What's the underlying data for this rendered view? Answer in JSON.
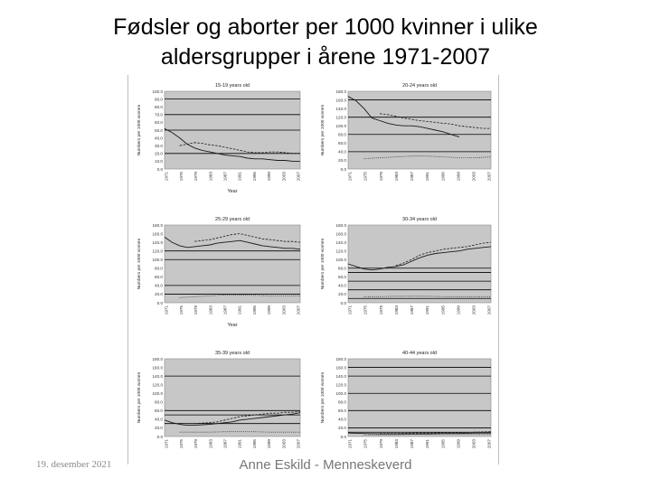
{
  "slide": {
    "title_line1": "Fødsler og aborter per 1000 kvinner i ulike",
    "title_line2": "aldersgrupper i årene 1971-2007",
    "footer_date": "19. desember 2021",
    "footer_author": "Anne Eskild - Menneskeverd"
  },
  "colors": {
    "plot_bg": "#c7c7c7",
    "series_line": "#1a1a1a",
    "grid_line": "#000000"
  },
  "chart_data": [
    {
      "type": "line",
      "title": "15-19 years old",
      "xlabel": "Year",
      "ylabel": "Numbers per 1000 women",
      "ylim": [
        0,
        100
      ],
      "yticks": [
        "100.0",
        "90.0",
        "80.0",
        "70.0",
        "60.0",
        "50.0",
        "40.0",
        "30.0",
        "20.0",
        "10.0",
        "0.0"
      ],
      "xticks": [
        "1971",
        "1975",
        "1979",
        "1983",
        "1987",
        "1991",
        "1995",
        "1999",
        "2003",
        "2007"
      ],
      "grid_y": [
        20,
        50,
        70,
        90
      ],
      "series": [
        {
          "style": "solid",
          "x": [
            1971,
            1973,
            1975,
            1977,
            1979,
            1981,
            1983,
            1985,
            1987,
            1989,
            1991,
            1993,
            1995,
            1997,
            1999,
            2001,
            2003,
            2005,
            2007
          ],
          "y": [
            52,
            47,
            40,
            32,
            27,
            24,
            22,
            20,
            18,
            17,
            16,
            14,
            13,
            13,
            12,
            11,
            11,
            10,
            10
          ]
        },
        {
          "style": "dashed",
          "x": [
            1975,
            1977,
            1979,
            1981,
            1983,
            1985,
            1987,
            1989,
            1991,
            1993,
            1995,
            1997,
            1999,
            2001,
            2003,
            2005,
            2007
          ],
          "y": [
            30,
            32,
            34,
            33,
            31,
            30,
            28,
            26,
            24,
            22,
            21,
            21,
            22,
            22,
            21,
            20,
            20
          ]
        }
      ]
    },
    {
      "type": "line",
      "title": "20-24 years old",
      "xlabel": "",
      "ylabel": "Numbers per 1000 women",
      "ylim": [
        0,
        180
      ],
      "yticks": [
        "180.0",
        "160.0",
        "140.0",
        "120.0",
        "100.0",
        "80.0",
        "60.0",
        "40.0",
        "20.0",
        "0.0"
      ],
      "xticks": [
        "1971",
        "1975",
        "1979",
        "1983",
        "1987",
        "1991",
        "1995",
        "1999",
        "2003",
        "2007"
      ],
      "grid_y": [
        40,
        80,
        120,
        160
      ],
      "series": [
        {
          "style": "solid",
          "x": [
            1971,
            1973,
            1975,
            1977,
            1979,
            1981,
            1983,
            1985,
            1987,
            1989,
            1991,
            1993,
            1995,
            1997,
            1999
          ],
          "y": [
            168,
            158,
            140,
            118,
            112,
            106,
            102,
            100,
            100,
            98,
            94,
            90,
            86,
            80,
            74
          ]
        },
        {
          "style": "dashed",
          "x": [
            1979,
            1981,
            1983,
            1985,
            1987,
            1989,
            1991,
            1993,
            1995,
            1997,
            1999,
            2001,
            2003,
            2005,
            2007
          ],
          "y": [
            128,
            126,
            122,
            118,
            115,
            112,
            110,
            108,
            106,
            104,
            100,
            98,
            96,
            94,
            94
          ]
        },
        {
          "style": "dotted",
          "x": [
            1975,
            1979,
            1983,
            1987,
            1991,
            1995,
            1999,
            2003,
            2007
          ],
          "y": [
            24,
            26,
            28,
            30,
            30,
            28,
            26,
            26,
            28
          ]
        }
      ]
    },
    {
      "type": "line",
      "title": "25-29 years old",
      "xlabel": "Year",
      "ylabel": "Numbers per 1000 women",
      "ylim": [
        0,
        180
      ],
      "yticks": [
        "180.0",
        "160.0",
        "140.0",
        "120.0",
        "100.0",
        "80.0",
        "60.0",
        "40.0",
        "20.0",
        "0.0"
      ],
      "xticks": [
        "1971",
        "1975",
        "1979",
        "1983",
        "1987",
        "1991",
        "1995",
        "1999",
        "2003",
        "2007"
      ],
      "grid_y": [
        20,
        40,
        100,
        120
      ],
      "series": [
        {
          "style": "solid",
          "x": [
            1971,
            1973,
            1975,
            1977,
            1979,
            1981,
            1983,
            1985,
            1987,
            1989,
            1991,
            1993,
            1995,
            1997,
            1999,
            2001,
            2003,
            2005,
            2007
          ],
          "y": [
            152,
            140,
            132,
            128,
            130,
            132,
            134,
            138,
            140,
            142,
            144,
            140,
            136,
            132,
            130,
            128,
            126,
            126,
            124
          ]
        },
        {
          "style": "dashed",
          "x": [
            1979,
            1981,
            1983,
            1985,
            1987,
            1989,
            1991,
            1993,
            1995,
            1997,
            1999,
            2001,
            2003,
            2005,
            2007
          ],
          "y": [
            142,
            144,
            146,
            150,
            154,
            158,
            160,
            156,
            152,
            148,
            146,
            144,
            142,
            142,
            140
          ]
        },
        {
          "style": "dotted",
          "x": [
            1975,
            1979,
            1983,
            1987,
            1991,
            1995,
            1999,
            2003,
            2007
          ],
          "y": [
            12,
            14,
            16,
            18,
            18,
            17,
            16,
            16,
            16
          ]
        }
      ]
    },
    {
      "type": "line",
      "title": "30-34 years old",
      "xlabel": "",
      "ylabel": "Numbers per 1000 women",
      "ylim": [
        0,
        180
      ],
      "yticks": [
        "180.0",
        "160.0",
        "140.0",
        "120.0",
        "100.0",
        "80.0",
        "60.0",
        "40.0",
        "20.0",
        "0.0"
      ],
      "xticks": [
        "1971",
        "1975",
        "1979",
        "1983",
        "1987",
        "1991",
        "1995",
        "1999",
        "2003",
        "2007"
      ],
      "grid_y": [
        10,
        30,
        50,
        70,
        80
      ],
      "series": [
        {
          "style": "solid",
          "x": [
            1971,
            1973,
            1975,
            1977,
            1979,
            1981,
            1983,
            1985,
            1987,
            1989,
            1991,
            1993,
            1995,
            1997,
            1999,
            2001,
            2003,
            2005,
            2007
          ],
          "y": [
            90,
            84,
            78,
            76,
            78,
            82,
            84,
            88,
            96,
            104,
            110,
            114,
            116,
            118,
            120,
            124,
            126,
            128,
            130
          ]
        },
        {
          "style": "dashed",
          "x": [
            1983,
            1985,
            1987,
            1989,
            1991,
            1993,
            1995,
            1997,
            1999,
            2001,
            2003,
            2005,
            2007
          ],
          "y": [
            86,
            92,
            100,
            110,
            116,
            120,
            124,
            126,
            128,
            130,
            134,
            138,
            140
          ]
        },
        {
          "style": "dotted",
          "x": [
            1975,
            1979,
            1983,
            1987,
            1991,
            1995,
            1999,
            2003,
            2007
          ],
          "y": [
            14,
            14,
            15,
            15,
            15,
            14,
            14,
            14,
            14
          ]
        }
      ]
    },
    {
      "type": "line",
      "title": "35-39 years old",
      "xlabel": "",
      "ylabel": "Numbers per 1000 women",
      "ylim": [
        0,
        180
      ],
      "yticks": [
        "180.0",
        "160.0",
        "140.0",
        "120.0",
        "100.0",
        "80.0",
        "60.0",
        "40.0",
        "20.0",
        "0.0"
      ],
      "xticks": [
        "1971",
        "1975",
        "1979",
        "1983",
        "1987",
        "1991",
        "1995",
        "1999",
        "2003",
        "2007"
      ],
      "grid_y": [
        30,
        50,
        60,
        140
      ],
      "series": [
        {
          "style": "solid",
          "x": [
            1971,
            1973,
            1975,
            1977,
            1979,
            1981,
            1983,
            1985,
            1987,
            1989,
            1991,
            1993,
            1995,
            1997,
            1999,
            2001,
            2003,
            2005,
            2007
          ],
          "y": [
            38,
            32,
            28,
            26,
            26,
            27,
            28,
            30,
            32,
            34,
            38,
            40,
            42,
            44,
            46,
            48,
            50,
            52,
            55
          ]
        },
        {
          "style": "dashed",
          "x": [
            1979,
            1981,
            1983,
            1985,
            1987,
            1989,
            1991,
            1993,
            1995,
            1997,
            1999,
            2001,
            2003,
            2005,
            2007
          ],
          "y": [
            30,
            31,
            32,
            34,
            38,
            42,
            46,
            48,
            50,
            52,
            54,
            54,
            56,
            56,
            58
          ]
        },
        {
          "style": "dotted",
          "x": [
            1975,
            1979,
            1983,
            1987,
            1991,
            1995,
            1999,
            2003,
            2007
          ],
          "y": [
            10,
            10,
            10,
            11,
            11,
            11,
            10,
            10,
            10
          ]
        }
      ]
    },
    {
      "type": "line",
      "title": "40-44 years old",
      "xlabel": "",
      "ylabel": "Numbers per 1000 women",
      "ylim": [
        0,
        180
      ],
      "yticks": [
        "180.0",
        "160.0",
        "140.0",
        "120.0",
        "100.0",
        "80.0",
        "60.0",
        "40.0",
        "20.0",
        "0.0"
      ],
      "xticks": [
        "1971",
        "1975",
        "1979",
        "1983",
        "1987",
        "1991",
        "1995",
        "1999",
        "2003",
        "2007"
      ],
      "grid_y": [
        10,
        20,
        60,
        100,
        140,
        160
      ],
      "series": [
        {
          "style": "solid",
          "x": [
            1971,
            1975,
            1979,
            1983,
            1987,
            1991,
            1995,
            1999,
            2003,
            2005,
            2007
          ],
          "y": [
            8,
            7,
            6,
            6,
            6,
            6,
            7,
            7,
            8,
            8,
            8
          ]
        },
        {
          "style": "dashed",
          "x": [
            1979,
            1983,
            1987,
            1991,
            1995,
            1999,
            2003,
            2007
          ],
          "y": [
            7,
            7,
            8,
            8,
            9,
            9,
            10,
            11
          ]
        },
        {
          "style": "dotted",
          "x": [
            1975,
            1979,
            1983,
            1987,
            1991,
            1995,
            1999,
            2003,
            2007
          ],
          "y": [
            4,
            4,
            4,
            5,
            5,
            5,
            5,
            5,
            5
          ]
        }
      ]
    }
  ]
}
